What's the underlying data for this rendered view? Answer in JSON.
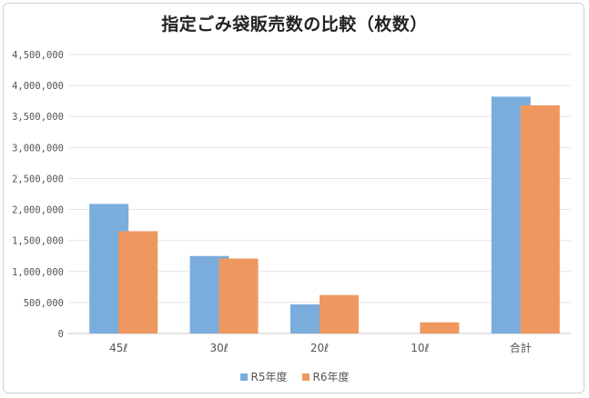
{
  "chart_data": {
    "type": "bar",
    "title": "指定ごみ袋販売数の比較（枚数）",
    "xlabel": "",
    "ylabel": "",
    "categories": [
      "45ℓ",
      "30ℓ",
      "20ℓ",
      "10ℓ",
      "合計"
    ],
    "series": [
      {
        "name": "R5年度",
        "color": "#7aaddc",
        "values": [
          2090000,
          1250000,
          470000,
          0,
          3820000
        ]
      },
      {
        "name": "R6年度",
        "color": "#ee9860",
        "values": [
          1650000,
          1210000,
          620000,
          180000,
          3680000
        ]
      }
    ],
    "ylim": [
      0,
      4500000
    ],
    "yticks": [
      "0",
      "500,000",
      "1,000,000",
      "1,500,000",
      "2,000,000",
      "2,500,000",
      "3,000,000",
      "3,500,000",
      "4,000,000",
      "4,500,000"
    ],
    "grid": true,
    "legend": "bottom"
  }
}
